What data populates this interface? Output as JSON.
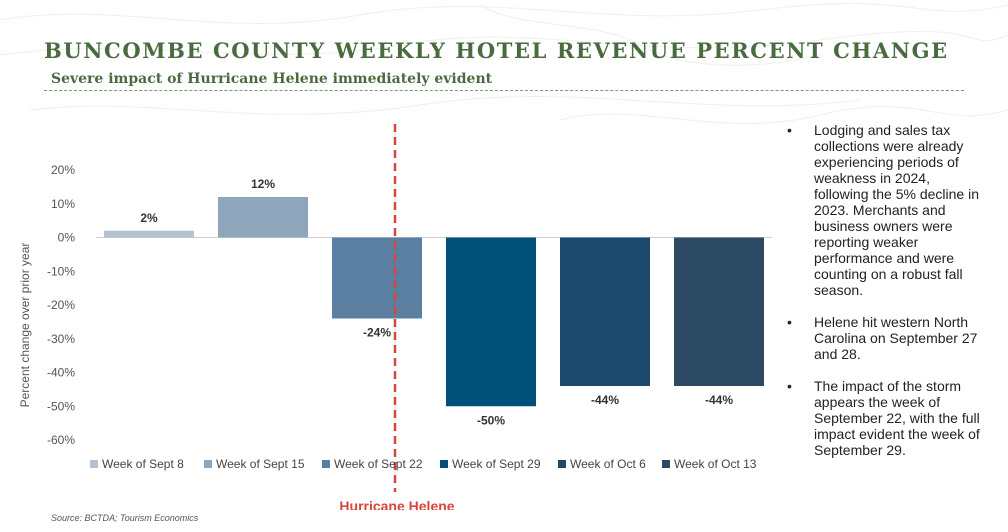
{
  "header": {
    "title": "BUNCOMBE COUNTY WEEKLY HOTEL REVENUE PERCENT CHANGE",
    "subtitle": "Severe impact of Hurricane Helene immediately evident"
  },
  "chart_data": {
    "type": "bar",
    "categories": [
      "Week of Sept 8",
      "Week of Sept 15",
      "Week of Sept 22",
      "Week of Sept 29",
      "Week of Oct 6",
      "Week of Oct 13"
    ],
    "values": [
      2,
      12,
      -24,
      -50,
      -44,
      -44
    ],
    "data_labels": [
      "2%",
      "12%",
      "-24%",
      "-50%",
      "-44%",
      "-44%"
    ],
    "colors": [
      "#b3c2d1",
      "#8fa5bb",
      "#5b7fa0",
      "#00507a",
      "#1c4a6e",
      "#2c4a63"
    ],
    "ylabel": "Percent change over prior year",
    "xlabel": "",
    "ylim": [
      -60,
      20
    ],
    "yticks": [
      20,
      10,
      0,
      -10,
      -20,
      -30,
      -40,
      -50,
      -60
    ],
    "ytick_labels": [
      "20%",
      "10%",
      "0%",
      "-10%",
      "-20%",
      "-30%",
      "-40%",
      "-50%",
      "-60%"
    ],
    "grid": false,
    "legend_position": "bottom",
    "annotation": {
      "label": "Hurricane Helene",
      "position_between": [
        "Week of Sept 15",
        "Week of Sept 22"
      ],
      "color": "#d9453d"
    }
  },
  "bullets": [
    "Lodging and sales tax collections were already experiencing periods of weakness in 2024, following the 5% decline in 2023. Merchants and business owners were reporting weaker performance and were counting on a robust fall season.",
    "Helene hit western North Carolina on September 27 and 28.",
    "The impact of the storm appears the week of September 22, with the full impact evident the week of  September 29."
  ],
  "source": "Source:  BCTDA; Tourism Economics",
  "colors": {
    "title": "#4a6b3f",
    "annotation": "#d9453d"
  }
}
